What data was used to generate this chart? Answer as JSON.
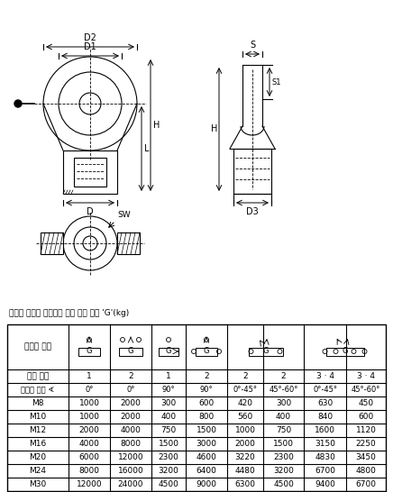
{
  "title": "다양한 스토퍼 종류에서 최대 운송 무게 'G'(kg)",
  "header_row1": [
    "스토퍼 종류",
    "",
    "",
    "",
    "",
    "",
    "",
    "",
    ""
  ],
  "code_row": [
    "코드 숫자",
    "1",
    "2",
    "1",
    "2",
    "2",
    "2",
    "3 · 4",
    "3 · 4"
  ],
  "angle_row": [
    "스위벨 앵글 ∢",
    "0°",
    "0°",
    "90°",
    "90°",
    "0°-45°",
    "45°-60°",
    "0°-45°",
    "45°-60°"
  ],
  "data_rows": [
    [
      "M8",
      "1000",
      "2000",
      "300",
      "600",
      "420",
      "300",
      "630",
      "450"
    ],
    [
      "M10",
      "1000",
      "2000",
      "400",
      "800",
      "560",
      "400",
      "840",
      "600"
    ],
    [
      "M12",
      "2000",
      "4000",
      "750",
      "1500",
      "1000",
      "750",
      "1600",
      "1120"
    ],
    [
      "M16",
      "4000",
      "8000",
      "1500",
      "3000",
      "2000",
      "1500",
      "3150",
      "2250"
    ],
    [
      "M20",
      "6000",
      "12000",
      "2300",
      "4600",
      "3220",
      "2300",
      "4830",
      "3450"
    ],
    [
      "M24",
      "8000",
      "16000",
      "3200",
      "6400",
      "4480",
      "3200",
      "6700",
      "4800"
    ],
    [
      "M30",
      "12000",
      "24000",
      "4500",
      "9000",
      "6300",
      "4500",
      "9400",
      "6700"
    ]
  ],
  "bg_color": "#ffffff",
  "line_color": "#000000",
  "text_color": "#000000",
  "table_header_bg": "#f0f0f0"
}
